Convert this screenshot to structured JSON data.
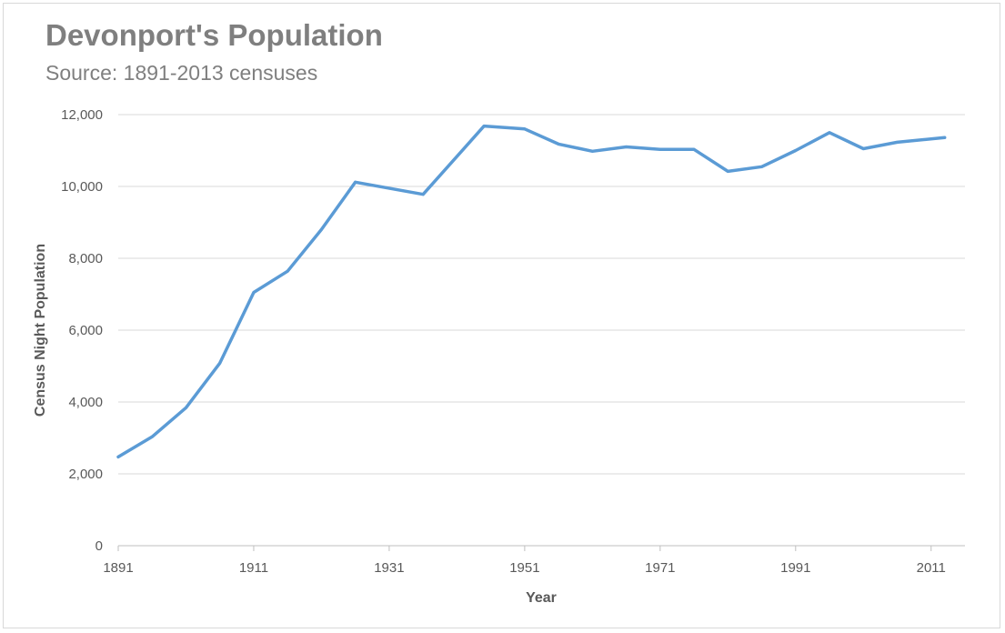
{
  "chart_data": {
    "type": "line",
    "title": "Devonport's Population",
    "subtitle": "Source: 1891-2013 censuses",
    "xlabel": "Year",
    "ylabel": "Census Night Population",
    "xlim": [
      1891,
      2016
    ],
    "ylim": [
      0,
      12000
    ],
    "x_ticks": [
      1891,
      1911,
      1931,
      1951,
      1971,
      1991,
      2011
    ],
    "x_tick_labels": [
      "1891",
      "1911",
      "1931",
      "1951",
      "1971",
      "1991",
      "2011"
    ],
    "y_ticks": [
      0,
      2000,
      4000,
      6000,
      8000,
      10000,
      12000
    ],
    "y_tick_labels": [
      "0",
      "2,000",
      "4,000",
      "6,000",
      "8,000",
      "10,000",
      "12,000"
    ],
    "grid": true,
    "series": [
      {
        "color": "#5b9bd5",
        "x": [
          1891,
          1896,
          1901,
          1906,
          1911,
          1916,
          1921,
          1926,
          1936,
          1945,
          1951,
          1956,
          1961,
          1966,
          1971,
          1976,
          1981,
          1986,
          1991,
          1996,
          2001,
          2006,
          2013
        ],
        "y": [
          2470,
          3030,
          3840,
          5080,
          7050,
          7640,
          8800,
          10120,
          9780,
          11680,
          11600,
          11180,
          10980,
          11100,
          11030,
          11030,
          10420,
          10550,
          11000,
          11500,
          11050,
          11230,
          11360
        ]
      }
    ]
  }
}
